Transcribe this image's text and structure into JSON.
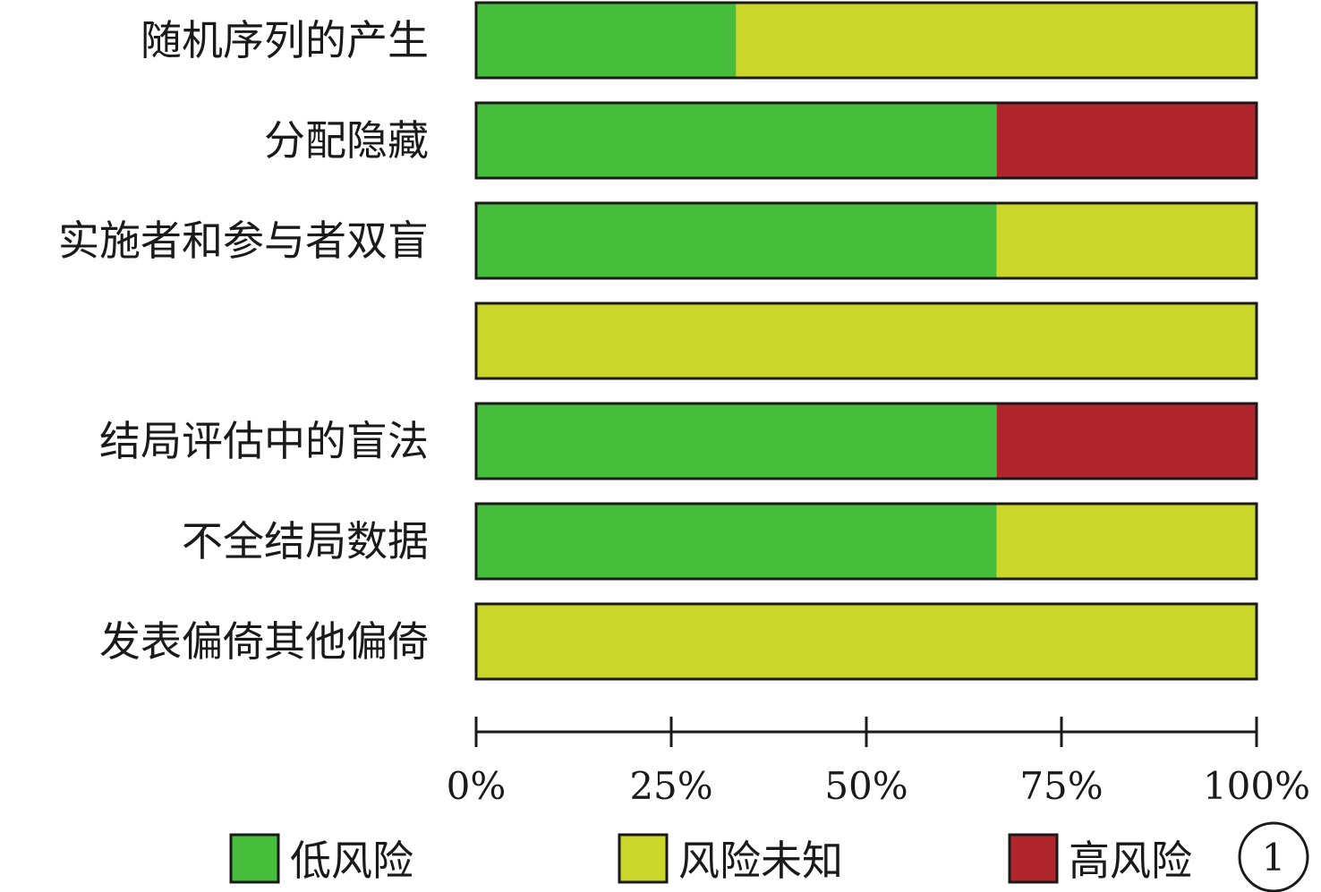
{
  "chart_data": {
    "type": "bar",
    "orientation": "horizontal",
    "stacked": true,
    "categories": [
      "随机序列的产生",
      "分配隐藏",
      "实施者和参与者双盲",
      "",
      "结局评估中的盲法",
      "不全结局数据",
      "发表偏倚其他偏倚"
    ],
    "series": [
      {
        "name": "低风险",
        "color": "#46bd3b",
        "values": [
          33.3,
          66.7,
          66.7,
          0,
          66.7,
          66.7,
          0
        ]
      },
      {
        "name": "风险未知",
        "color": "#cad62a",
        "values": [
          66.7,
          0,
          33.3,
          100,
          0,
          33.3,
          100
        ]
      },
      {
        "name": "高风险",
        "color": "#b1262d",
        "values": [
          0,
          33.3,
          0,
          0,
          33.3,
          0,
          0
        ]
      }
    ],
    "xlim": [
      0,
      100
    ],
    "xticks": [
      "0%",
      "25%",
      "50%",
      "75%",
      "100%"
    ],
    "title": "",
    "xlabel": "",
    "ylabel": "",
    "legend_position": "bottom",
    "panel_marker": "1",
    "grid": false
  }
}
